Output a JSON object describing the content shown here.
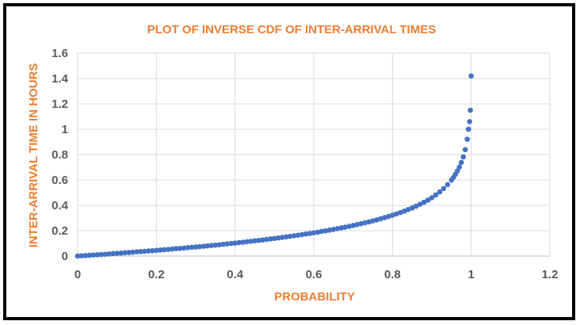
{
  "chart_data": {
    "type": "scatter",
    "title": "PLOT OF INVERSE CDF OF INTER-ARRIVAL TIMES",
    "xlabel": "PROBABILITY",
    "ylabel": "INTER-ARRIVAL TIME IN HOURS",
    "xlim": [
      0,
      1.2
    ],
    "ylim": [
      0,
      1.6
    ],
    "x_ticks": [
      0,
      0.2,
      0.4,
      0.6,
      0.8,
      1,
      1.2
    ],
    "y_ticks": [
      0,
      0.2,
      0.4,
      0.6,
      0.8,
      1,
      1.2,
      1.4,
      1.6
    ],
    "x_tick_labels": [
      "0",
      "0.2",
      "0.4",
      "0.6",
      "0.8",
      "1",
      "1.2"
    ],
    "y_tick_labels": [
      "0",
      "0.2",
      "0.4",
      "0.6",
      "0.8",
      "1",
      "1.2",
      "1.4",
      "1.6"
    ],
    "grid": true,
    "legend": "none",
    "colors": {
      "marker": "#4472c4",
      "title": "#ed7d31",
      "axis_title": "#ed7d31",
      "tick_label": "#595959",
      "grid": "#d9d9d9",
      "border": "#000000"
    },
    "series": [
      {
        "x": [
          0.0,
          0.01,
          0.02,
          0.03,
          0.04,
          0.05,
          0.06,
          0.07,
          0.08,
          0.09,
          0.1,
          0.11,
          0.12,
          0.13,
          0.14,
          0.15,
          0.16,
          0.17,
          0.18,
          0.19,
          0.2,
          0.21,
          0.22,
          0.23,
          0.24,
          0.25,
          0.26,
          0.27,
          0.28,
          0.29,
          0.3,
          0.31,
          0.32,
          0.33,
          0.34,
          0.35,
          0.36,
          0.37,
          0.38,
          0.39,
          0.4,
          0.41,
          0.42,
          0.43,
          0.44,
          0.45,
          0.46,
          0.47,
          0.48,
          0.49,
          0.5,
          0.51,
          0.52,
          0.53,
          0.54,
          0.55,
          0.56,
          0.57,
          0.58,
          0.59,
          0.6,
          0.61,
          0.62,
          0.63,
          0.64,
          0.65,
          0.66,
          0.67,
          0.68,
          0.69,
          0.7,
          0.71,
          0.72,
          0.73,
          0.74,
          0.75,
          0.76,
          0.77,
          0.78,
          0.79,
          0.8,
          0.81,
          0.82,
          0.83,
          0.84,
          0.85,
          0.86,
          0.87,
          0.88,
          0.89,
          0.9,
          0.91,
          0.92,
          0.93,
          0.94,
          0.95,
          0.955,
          0.96,
          0.965,
          0.97,
          0.975,
          0.98,
          0.985,
          0.99,
          0.993,
          0.996,
          0.998,
          1.0
        ],
        "y": [
          0.0,
          0.002,
          0.004,
          0.006,
          0.008,
          0.01,
          0.012,
          0.014,
          0.017,
          0.019,
          0.021,
          0.023,
          0.026,
          0.028,
          0.03,
          0.033,
          0.035,
          0.037,
          0.04,
          0.042,
          0.045,
          0.047,
          0.05,
          0.052,
          0.055,
          0.058,
          0.06,
          0.063,
          0.066,
          0.069,
          0.071,
          0.074,
          0.077,
          0.08,
          0.083,
          0.086,
          0.089,
          0.093,
          0.096,
          0.099,
          0.102,
          0.106,
          0.109,
          0.113,
          0.116,
          0.12,
          0.123,
          0.127,
          0.131,
          0.135,
          0.139,
          0.143,
          0.147,
          0.151,
          0.155,
          0.16,
          0.164,
          0.169,
          0.174,
          0.178,
          0.183,
          0.188,
          0.194,
          0.199,
          0.204,
          0.21,
          0.216,
          0.222,
          0.228,
          0.234,
          0.241,
          0.248,
          0.255,
          0.262,
          0.269,
          0.277,
          0.285,
          0.294,
          0.303,
          0.312,
          0.322,
          0.332,
          0.343,
          0.354,
          0.367,
          0.379,
          0.393,
          0.408,
          0.424,
          0.441,
          0.46,
          0.482,
          0.505,
          0.532,
          0.563,
          0.599,
          0.62,
          0.644,
          0.671,
          0.701,
          0.738,
          0.782,
          0.839,
          0.921,
          1.0,
          1.06,
          1.15,
          1.42
        ]
      }
    ]
  }
}
